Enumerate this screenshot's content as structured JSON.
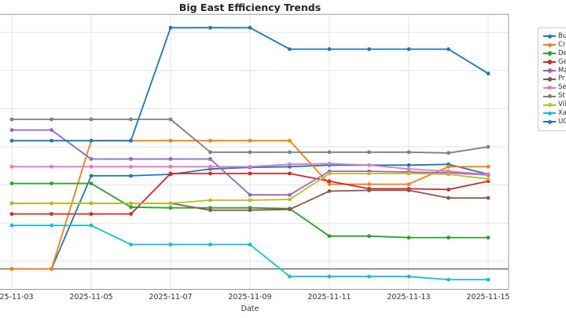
{
  "figure": {
    "title": "Big East Efficiency Trends",
    "x_axis_label": "Date"
  },
  "legend": {
    "items": [
      {
        "label": "Bu",
        "color": "#1f77b4"
      },
      {
        "label": "Cr",
        "color": "#ff7f0e"
      },
      {
        "label": "De",
        "color": "#2ca02c"
      },
      {
        "label": "Ge",
        "color": "#d62728"
      },
      {
        "label": "Ma",
        "color": "#9467bd"
      },
      {
        "label": "Pr",
        "color": "#8c564b"
      },
      {
        "label": "Se",
        "color": "#e377c2"
      },
      {
        "label": "St",
        "color": "#7f7f7f"
      },
      {
        "label": "Vil",
        "color": "#bcbd22"
      },
      {
        "label": "Xa",
        "color": "#17becf"
      },
      {
        "label": "UC",
        "color": "#1f77b4"
      }
    ]
  },
  "chart_data": {
    "type": "line",
    "title": "Big East Efficiency Trends",
    "xlabel": "Date",
    "ylabel": "",
    "x": [
      "2025-11-03",
      "2025-11-04",
      "2025-11-05",
      "2025-11-06",
      "2025-11-07",
      "2025-11-08",
      "2025-11-09",
      "2025-11-10",
      "2025-11-11",
      "2025-11-12",
      "2025-11-13",
      "2025-11-14",
      "2025-11-15"
    ],
    "x_tick_labels": [
      "2025-11-03",
      "2025-11-05",
      "2025-11-07",
      "2025-11-09",
      "2025-11-11",
      "2025-11-13",
      "2025-11-15"
    ],
    "ylim": [
      97.3,
      133.4
    ],
    "baseline_value": 100,
    "y_gridline_values": [
      101,
      106,
      111,
      116,
      121,
      126,
      131
    ],
    "grid": true,
    "legend_position": "right of plot, clipped by image edge",
    "marker": "circle",
    "series": [
      {
        "name": "Bu",
        "color": "#1f77b4",
        "values": [
          100.0,
          100.0,
          112.2,
          112.2,
          112.4,
          113.1,
          113.3,
          113.4,
          113.6,
          113.6,
          113.6,
          113.7,
          112.4
        ]
      },
      {
        "name": "Cr",
        "color": "#ff7f0e",
        "values": [
          100.0,
          100.0,
          116.8,
          116.8,
          116.8,
          116.8,
          116.8,
          116.8,
          111.1,
          111.1,
          111.1,
          113.4,
          113.4
        ]
      },
      {
        "name": "De",
        "color": "#2ca02c",
        "values": [
          111.2,
          111.2,
          111.2,
          108.1,
          108.0,
          108.0,
          108.0,
          107.9,
          104.3,
          104.3,
          104.1,
          104.1,
          104.1
        ]
      },
      {
        "name": "Ge",
        "color": "#d62728",
        "values": [
          107.2,
          107.2,
          107.2,
          107.2,
          112.5,
          112.5,
          112.5,
          112.5,
          111.5,
          110.5,
          110.5,
          110.4,
          111.5
        ]
      },
      {
        "name": "Ma",
        "color": "#9467bd",
        "values": [
          118.2,
          118.2,
          114.4,
          114.4,
          114.4,
          114.4,
          109.7,
          109.7,
          112.8,
          112.8,
          112.7,
          112.6,
          112.3
        ]
      },
      {
        "name": "Pr",
        "color": "#8c564b",
        "values": [
          108.6,
          108.6,
          108.6,
          108.6,
          108.6,
          107.7,
          107.7,
          107.8,
          110.2,
          110.3,
          110.3,
          109.3,
          109.3
        ]
      },
      {
        "name": "Se",
        "color": "#e377c2",
        "values": [
          113.4,
          113.4,
          113.4,
          113.4,
          113.4,
          113.4,
          113.4,
          113.7,
          113.8,
          113.6,
          113.1,
          112.8,
          112.4
        ]
      },
      {
        "name": "St",
        "color": "#7f7f7f",
        "values": [
          119.6,
          119.6,
          119.6,
          119.6,
          119.6,
          115.3,
          115.3,
          115.3,
          115.3,
          115.3,
          115.3,
          115.2,
          116.0
        ]
      },
      {
        "name": "Vil",
        "color": "#bcbd22",
        "values": [
          108.6,
          108.6,
          108.6,
          108.6,
          108.6,
          109.0,
          109.0,
          109.1,
          112.5,
          112.5,
          112.5,
          112.4,
          111.8
        ]
      },
      {
        "name": "Xa",
        "color": "#17becf",
        "values": [
          105.7,
          105.7,
          105.7,
          103.2,
          103.2,
          103.2,
          103.2,
          99.0,
          99.0,
          99.0,
          99.0,
          98.6,
          98.6
        ]
      },
      {
        "name": "UC",
        "color": "#1f77b4",
        "values": [
          116.8,
          116.8,
          116.8,
          116.8,
          131.6,
          131.6,
          131.6,
          128.8,
          128.8,
          128.8,
          128.8,
          128.8,
          125.6
        ]
      }
    ],
    "style": {
      "grid_color": "#e5e5e5",
      "spine_color": "#9a9a9a",
      "baseline_color": "#595959",
      "background": "#ffffff"
    }
  }
}
